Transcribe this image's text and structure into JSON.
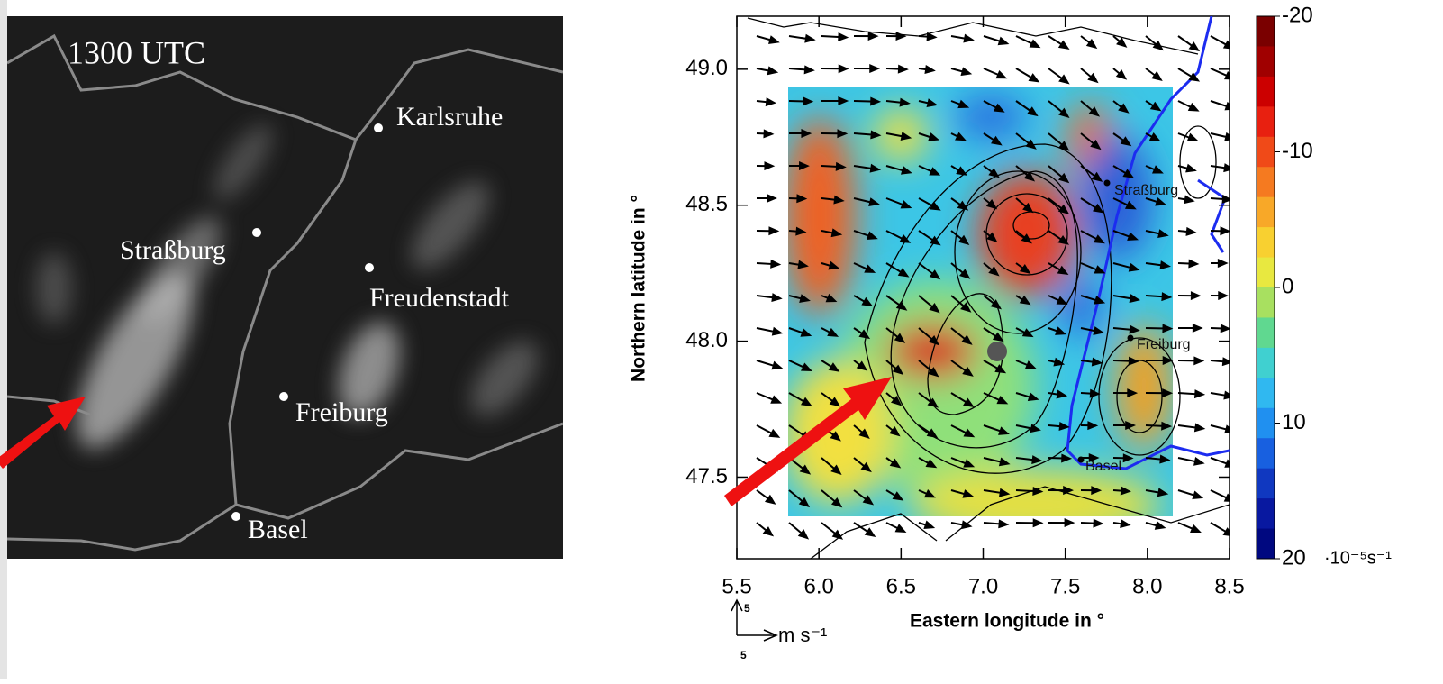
{
  "left_panel": {
    "time_label": "1300 UTC",
    "cities": [
      "Karlsruhe",
      "Straßburg",
      "Freudenstadt",
      "Freiburg",
      "Basel"
    ]
  },
  "right_panel": {
    "xlabel": "Eastern longitude in °",
    "ylabel": "Northern latitude in °",
    "xlim": [
      5.5,
      8.5
    ],
    "ylim": [
      47.2,
      49.195
    ],
    "xticks": [
      {
        "value": 5.5,
        "label": "5.5"
      },
      {
        "value": 6,
        "label": "6.0"
      },
      {
        "value": 6.5,
        "label": "6.5"
      },
      {
        "value": 7,
        "label": "7.0"
      },
      {
        "value": 7.5,
        "label": "7.5"
      },
      {
        "value": 8,
        "label": "8.0"
      },
      {
        "value": 8.5,
        "label": "8.5"
      }
    ],
    "yticks": [
      {
        "value": 47.5,
        "label": "47.5"
      },
      {
        "value": 48,
        "label": "48.0"
      },
      {
        "value": 48.5,
        "label": "48.5"
      },
      {
        "value": 49,
        "label": "49.0"
      }
    ],
    "cities": [
      "Straßburg",
      "Freiburg",
      "Basel"
    ],
    "colorbar": {
      "lim": [
        -20,
        20
      ],
      "ticks": [
        -20,
        -10,
        0,
        10,
        20
      ],
      "unit_label": "·10⁻⁵s⁻¹"
    },
    "vector_scale": {
      "up": 5,
      "right": 5,
      "unit_label": "m s⁻¹"
    }
  }
}
